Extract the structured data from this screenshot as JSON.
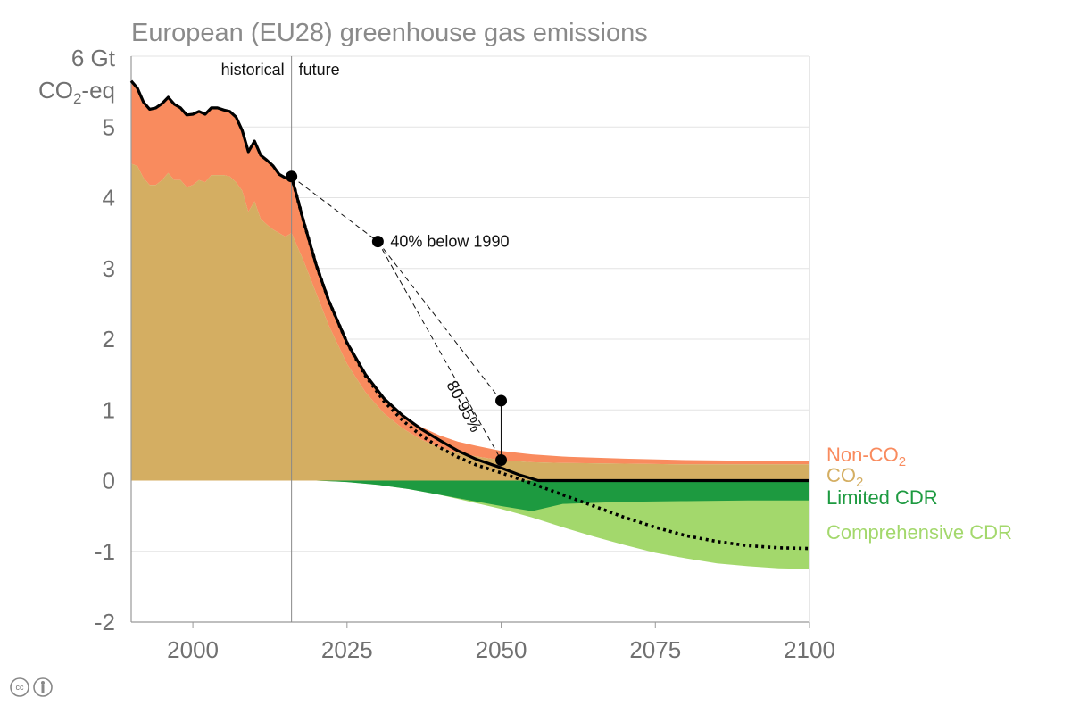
{
  "chart_data": {
    "type": "area",
    "title": "European (EU28) greenhouse gas emissions",
    "ylabel_line1": "6 Gt",
    "ylabel_line2_main": "CO",
    "ylabel_line2_sub": "2",
    "ylabel_line2_tail": "-eq",
    "xlim": [
      1990,
      2100
    ],
    "ylim": [
      -2,
      6
    ],
    "x_ticks": [
      2000,
      2025,
      2050,
      2075,
      2100
    ],
    "y_ticks": [
      -2,
      -1,
      0,
      1,
      2,
      3,
      4,
      5
    ],
    "divider_year": 2016,
    "divider_labels": {
      "left": "historical",
      "right": "future"
    },
    "legend_position": "right",
    "series": [
      {
        "name": "Non-CO",
        "name_sub": "2",
        "color": "#f98b5e",
        "x": [
          2016,
          2018,
          2020,
          2022,
          2025,
          2028,
          2031,
          2034,
          2037,
          2040,
          2043,
          2046,
          2050,
          2055,
          2060,
          2070,
          2080,
          2090,
          2100
        ],
        "upper": [
          4.3,
          3.65,
          3.05,
          2.55,
          1.95,
          1.5,
          1.16,
          0.92,
          0.76,
          0.64,
          0.55,
          0.49,
          0.42,
          0.37,
          0.34,
          0.31,
          0.29,
          0.28,
          0.28
        ]
      },
      {
        "name": "CO",
        "name_sub": "2",
        "color": "#d4ae62",
        "x": [
          1990,
          1991,
          1992,
          1993,
          1994,
          1995,
          1996,
          1997,
          1998,
          1999,
          2000,
          2001,
          2002,
          2003,
          2004,
          2005,
          2006,
          2007,
          2008,
          2009,
          2010,
          2011,
          2012,
          2013,
          2014,
          2015,
          2016,
          2018,
          2020,
          2022,
          2025,
          2028,
          2031,
          2034,
          2037,
          2040,
          2043,
          2046,
          2050,
          2055,
          2060,
          2070,
          2080,
          2090,
          2100
        ],
        "upper": [
          4.48,
          4.45,
          4.28,
          4.18,
          4.18,
          4.25,
          4.35,
          4.25,
          4.25,
          4.15,
          4.18,
          4.25,
          4.22,
          4.32,
          4.32,
          4.32,
          4.3,
          4.22,
          4.1,
          3.8,
          3.95,
          3.7,
          3.62,
          3.55,
          3.5,
          3.45,
          3.5,
          3.1,
          2.65,
          2.2,
          1.65,
          1.25,
          0.95,
          0.74,
          0.58,
          0.47,
          0.39,
          0.34,
          0.29,
          0.26,
          0.25,
          0.24,
          0.23,
          0.23,
          0.23
        ]
      },
      {
        "name": "Limited CDR",
        "color": "#1d9a40",
        "x": [
          2020,
          2025,
          2030,
          2035,
          2040,
          2045,
          2050,
          2055,
          2060,
          2070,
          2080,
          2090,
          2100
        ],
        "lower": [
          0.0,
          -0.02,
          -0.06,
          -0.12,
          -0.2,
          -0.28,
          -0.36,
          -0.43,
          -0.33,
          -0.3,
          -0.29,
          -0.28,
          -0.28
        ]
      },
      {
        "name": "Comprehensive CDR",
        "color": "#a3d86c",
        "x": [
          2020,
          2025,
          2030,
          2035,
          2040,
          2045,
          2050,
          2055,
          2060,
          2065,
          2070,
          2075,
          2080,
          2085,
          2090,
          2095,
          2100
        ],
        "lower": [
          0.0,
          -0.02,
          -0.06,
          -0.12,
          -0.2,
          -0.3,
          -0.4,
          -0.52,
          -0.66,
          -0.79,
          -0.91,
          -1.02,
          -1.1,
          -1.17,
          -1.21,
          -1.24,
          -1.25
        ]
      }
    ],
    "net_emissions_historical": {
      "x": [
        1990,
        1991,
        1992,
        1993,
        1994,
        1995,
        1996,
        1997,
        1998,
        1999,
        2000,
        2001,
        2002,
        2003,
        2004,
        2005,
        2006,
        2007,
        2008,
        2009,
        2010,
        2011,
        2012,
        2013,
        2014,
        2015,
        2016
      ],
      "y": [
        5.65,
        5.55,
        5.35,
        5.25,
        5.27,
        5.33,
        5.42,
        5.32,
        5.27,
        5.17,
        5.18,
        5.22,
        5.18,
        5.27,
        5.27,
        5.24,
        5.22,
        5.14,
        4.95,
        4.65,
        4.8,
        4.6,
        4.53,
        4.45,
        4.33,
        4.28,
        4.3
      ]
    },
    "net_emissions_future": {
      "x": [
        2016,
        2018,
        2020,
        2022,
        2025,
        2028,
        2031,
        2034,
        2037,
        2040,
        2043,
        2046,
        2050,
        2053,
        2056,
        2060,
        2070,
        2080,
        2090,
        2100
      ],
      "y": [
        4.3,
        3.65,
        3.05,
        2.55,
        1.95,
        1.5,
        1.16,
        0.92,
        0.73,
        0.57,
        0.42,
        0.3,
        0.18,
        0.08,
        0.0,
        0.0,
        0.0,
        0.0,
        0.0,
        0.0
      ]
    },
    "net_emissions_comprehensive": {
      "x": [
        2016,
        2018,
        2020,
        2022,
        2025,
        2028,
        2031,
        2034,
        2037,
        2040,
        2043,
        2046,
        2050,
        2055,
        2060,
        2065,
        2070,
        2075,
        2080,
        2085,
        2090,
        2095,
        2100
      ],
      "y": [
        4.3,
        3.65,
        3.05,
        2.55,
        1.95,
        1.48,
        1.12,
        0.85,
        0.64,
        0.47,
        0.33,
        0.22,
        0.11,
        -0.04,
        -0.2,
        -0.36,
        -0.52,
        -0.66,
        -0.78,
        -0.86,
        -0.92,
        -0.95,
        -0.96
      ]
    },
    "markers": [
      {
        "x": 2016,
        "y": 4.3
      },
      {
        "x": 2030,
        "y": 3.38,
        "label": "40% below 1990"
      },
      {
        "x": 2050,
        "y": 1.13
      },
      {
        "x": 2050,
        "y": 0.29
      }
    ],
    "target_range_label": "80-95%"
  }
}
